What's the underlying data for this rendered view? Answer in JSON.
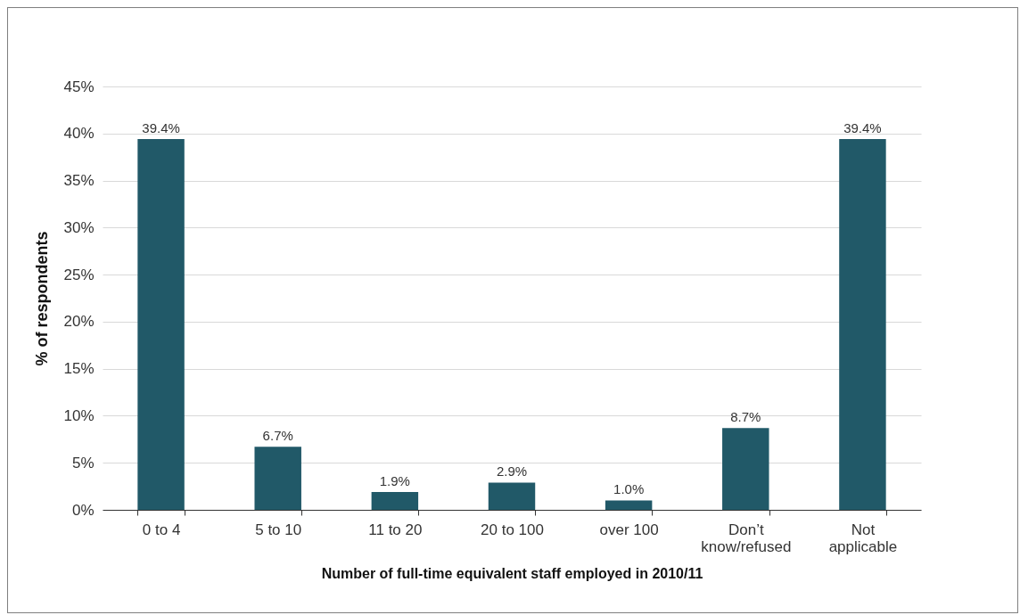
{
  "chart_data": {
    "type": "bar",
    "xlabel": "Number of full-time equivalent staff employed in 2010/11",
    "ylabel": "% of respondents",
    "categories": [
      "0 to 4",
      "5 to 10",
      "11 to 20",
      "20 to 100",
      "over 100",
      "Don’t know/refused",
      "Not applicable"
    ],
    "values": [
      39.4,
      6.7,
      1.9,
      2.9,
      1.0,
      8.7,
      39.4
    ],
    "value_labels": [
      "39.4%",
      "6.7%",
      "1.9%",
      "2.9%",
      "1.0%",
      "8.7%",
      "39.4%"
    ],
    "color": "#215968",
    "ylim": [
      0,
      45
    ],
    "yticks": [
      {
        "value": 0,
        "label": "0%"
      },
      {
        "value": 5,
        "label": "5%"
      },
      {
        "value": 10,
        "label": "10%"
      },
      {
        "value": 15,
        "label": "15%"
      },
      {
        "value": 20,
        "label": "20%"
      },
      {
        "value": 25,
        "label": "25%"
      },
      {
        "value": 30,
        "label": "30%"
      },
      {
        "value": 35,
        "label": "35%"
      },
      {
        "value": 40,
        "label": "40%"
      },
      {
        "value": 45,
        "label": "45%"
      }
    ],
    "grid": "y"
  }
}
